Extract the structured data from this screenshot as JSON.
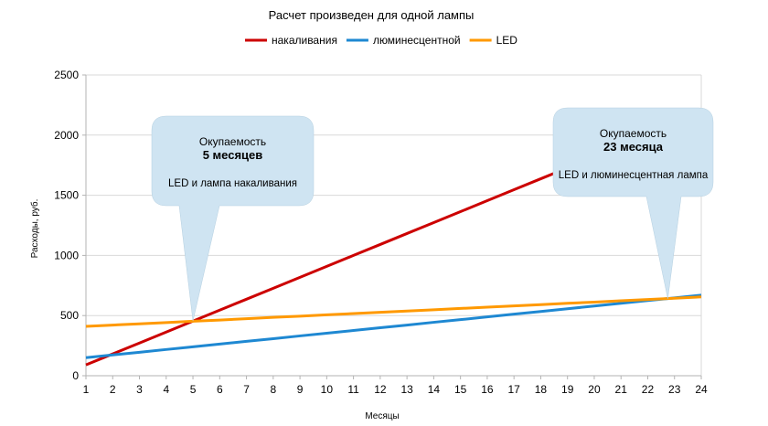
{
  "chart_data": {
    "type": "line",
    "title": "Расчет произведен для одной лампы",
    "xlabel": "Месяцы",
    "ylabel": "Расходы, руб.",
    "x": [
      1,
      2,
      3,
      4,
      5,
      6,
      7,
      8,
      9,
      10,
      11,
      12,
      13,
      14,
      15,
      16,
      17,
      18,
      19,
      20,
      21,
      22,
      23,
      24
    ],
    "ylim": [
      0,
      2500
    ],
    "yticks": [
      0,
      500,
      1000,
      1500,
      2000,
      2500
    ],
    "grid": true,
    "legend_position": "top",
    "series": [
      {
        "name": "накаливания",
        "color": "#cc0000",
        "values": [
          90,
          181,
          272,
          363,
          454,
          545,
          636,
          727,
          818,
          909,
          1000,
          1091,
          1182,
          1273,
          1364,
          1455,
          1546,
          1637,
          1728,
          1819,
          1910,
          2001,
          2092,
          2183
        ]
      },
      {
        "name": "люминесцентной",
        "color": "#1e88d2",
        "values": [
          150,
          173,
          195,
          218,
          240,
          263,
          286,
          308,
          331,
          353,
          376,
          399,
          421,
          444,
          466,
          489,
          512,
          534,
          557,
          579,
          602,
          625,
          647,
          670
        ]
      },
      {
        "name": "LED",
        "color": "#ff9900",
        "values": [
          410,
          421,
          431,
          442,
          453,
          463,
          474,
          485,
          495,
          506,
          517,
          527,
          538,
          548,
          559,
          570,
          580,
          591,
          602,
          612,
          623,
          634,
          644,
          655
        ]
      }
    ],
    "annotations": [
      {
        "line1": "Окупаемость",
        "line2": "5 месяцев",
        "line3": "LED и лампа накаливания",
        "x": 5,
        "y": 455
      },
      {
        "line1": "Окупаемость",
        "line2": "23 месяца",
        "line3": "LED и люминесцентная лампа",
        "x": 22.75,
        "y": 640
      }
    ]
  }
}
